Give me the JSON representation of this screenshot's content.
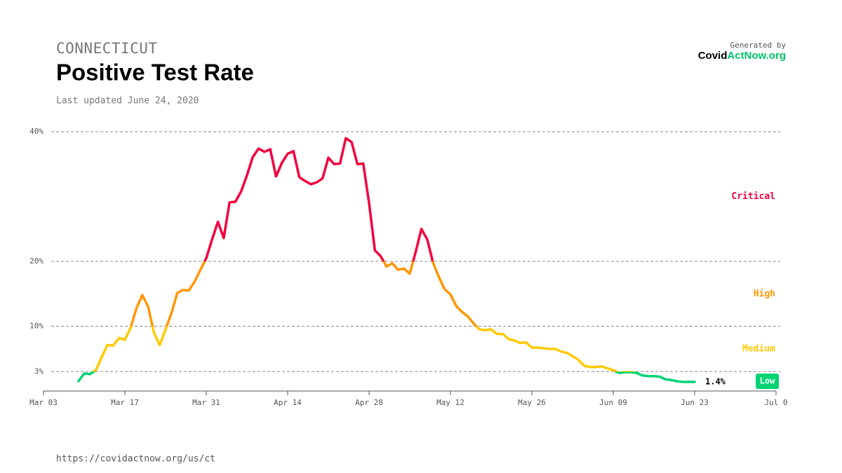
{
  "header": {
    "region": "CONNECTICUT",
    "updated": "Last updated June 24, 2020",
    "generated": "Generated by",
    "brand": {
      "dark": "Covid",
      "green": "ActNow.org"
    }
  },
  "footer": {
    "url": "https://covidactnow.org/us/ct"
  },
  "chart_data": {
    "type": "line",
    "title": "Positive Test Rate",
    "categories": [
      "Mar 03",
      null,
      null,
      null,
      null,
      null,
      null,
      null,
      null,
      null,
      null,
      null,
      null,
      null,
      "Mar 17",
      null,
      null,
      null,
      null,
      null,
      null,
      null,
      null,
      null,
      null,
      null,
      null,
      null,
      "Mar 31",
      null,
      null,
      null,
      null,
      null,
      null,
      null,
      null,
      null,
      null,
      null,
      null,
      null,
      "Apr 14",
      null,
      null,
      null,
      null,
      null,
      null,
      null,
      null,
      null,
      null,
      null,
      null,
      null,
      "Apr 28",
      null,
      null,
      null,
      null,
      null,
      null,
      null,
      null,
      null,
      null,
      null,
      null,
      null,
      "May 12",
      null,
      null,
      null,
      null,
      null,
      null,
      null,
      null,
      null,
      null,
      null,
      null,
      null,
      "May 26",
      null,
      null,
      null,
      null,
      null,
      null,
      null,
      null,
      null,
      null,
      null,
      null,
      null,
      "Jun 09",
      null,
      null,
      null,
      null,
      null,
      null,
      null,
      null,
      null,
      null,
      null,
      null,
      null,
      "Jun 23",
      null,
      null,
      null,
      null,
      null,
      null,
      null,
      null,
      null,
      null,
      null,
      null,
      null,
      "Jul 0"
    ],
    "values": [
      null,
      null,
      null,
      null,
      null,
      null,
      1.5,
      2.7,
      2.6,
      3.2,
      5.2,
      7.1,
      7.0,
      8.2,
      7.9,
      9.8,
      12.8,
      14.8,
      13.0,
      9.0,
      7.1,
      9.5,
      12.0,
      15.1,
      15.6,
      15.5,
      16.9,
      18.7,
      20.5,
      23.4,
      26.1,
      23.6,
      29.1,
      29.2,
      30.8,
      33.3,
      36.1,
      37.4,
      36.9,
      37.3,
      33.1,
      35.2,
      36.6,
      37.0,
      33.0,
      32.4,
      31.9,
      32.2,
      32.8,
      36.0,
      35.0,
      35.1,
      39.0,
      38.4,
      35.0,
      35.1,
      29.0,
      21.7,
      20.8,
      19.2,
      19.7,
      18.7,
      18.9,
      18.1,
      21.4,
      25.0,
      23.4,
      19.8,
      17.6,
      15.7,
      14.9,
      13.1,
      12.2,
      11.5,
      10.4,
      9.5,
      9.4,
      9.5,
      8.8,
      8.8,
      8.0,
      7.8,
      7.4,
      7.5,
      6.7,
      6.7,
      6.6,
      6.5,
      6.5,
      6.1,
      5.9,
      5.4,
      4.8,
      3.9,
      3.7,
      3.7,
      3.8,
      3.5,
      3.2,
      2.8,
      2.9,
      2.9,
      2.8,
      2.4,
      2.3,
      2.3,
      2.2,
      1.8,
      1.7,
      1.5,
      1.4,
      1.4,
      1.4,
      null,
      null,
      null,
      null,
      null,
      null,
      null,
      null,
      null,
      null,
      null,
      null,
      null,
      null
    ],
    "value_labels": [
      null,
      null,
      null,
      null,
      null,
      null,
      null,
      null,
      null,
      null,
      null,
      null,
      null,
      null,
      null,
      null,
      null,
      null,
      null,
      null,
      null,
      null,
      null,
      null,
      null,
      null,
      null,
      null,
      null,
      null,
      null,
      null,
      null,
      null,
      null,
      null,
      null,
      null,
      null,
      null,
      null,
      null,
      null,
      null,
      null,
      null,
      null,
      null,
      null,
      null,
      null,
      null,
      null,
      null,
      null,
      null,
      null,
      null,
      null,
      null,
      null,
      null,
      null,
      null,
      null,
      null,
      null,
      null,
      null,
      null,
      null,
      null,
      null,
      null,
      null,
      null,
      null,
      null,
      null,
      null,
      null,
      null,
      null,
      null,
      null,
      null,
      null,
      null,
      null,
      null,
      null,
      null,
      null,
      null,
      null,
      null,
      null,
      null,
      null,
      null,
      null,
      null,
      null,
      null,
      null,
      null,
      null,
      null,
      null,
      null,
      null,
      null,
      "1.4%",
      null,
      null,
      null,
      null,
      null,
      null,
      null,
      null,
      null,
      null,
      null,
      null,
      null,
      null
    ],
    "ylim": [
      0,
      40
    ],
    "yticks": [
      {
        "value": 3,
        "label": "3%"
      },
      {
        "value": 10,
        "label": "10%"
      },
      {
        "value": 20,
        "label": "20%"
      },
      {
        "value": 40,
        "label": "40%"
      }
    ],
    "grid": true,
    "zones": [
      {
        "name": "Low",
        "color": "#00d474",
        "from": 0
      },
      {
        "name": "Medium",
        "color": "#ffc900",
        "from": 3
      },
      {
        "name": "High",
        "color": "#ff9600",
        "from": 10
      },
      {
        "name": "Critical",
        "color": "#f2003d",
        "from": 20
      }
    ]
  }
}
